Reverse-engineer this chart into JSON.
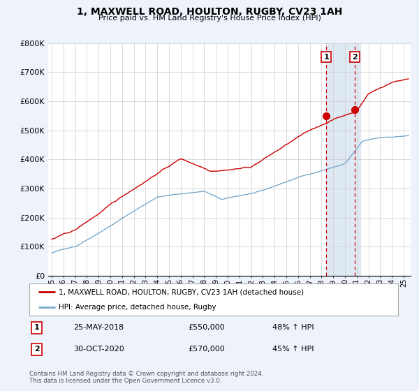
{
  "title": "1, MAXWELL ROAD, HOULTON, RUGBY, CV23 1AH",
  "subtitle": "Price paid vs. HM Land Registry's House Price Index (HPI)",
  "ylim": [
    0,
    800000
  ],
  "yticks": [
    0,
    100000,
    200000,
    300000,
    400000,
    500000,
    600000,
    700000,
    800000
  ],
  "ytick_labels": [
    "£0",
    "£100K",
    "£200K",
    "£300K",
    "£400K",
    "£500K",
    "£600K",
    "£700K",
    "£800K"
  ],
  "property_color": "#cc0000",
  "hpi_color": "#7aaacc",
  "vline_color": "#cc0000",
  "marker1_date": 2018.4,
  "marker1_price": 550000,
  "marker1_text": "25-MAY-2018",
  "marker1_pct": "48% ↑ HPI",
  "marker2_date": 2020.83,
  "marker2_price": 570000,
  "marker2_text": "30-OCT-2020",
  "marker2_pct": "45% ↑ HPI",
  "legend_property": "1, MAXWELL ROAD, HOULTON, RUGBY, CV23 1AH (detached house)",
  "legend_hpi": "HPI: Average price, detached house, Rugby",
  "footer": "Contains HM Land Registry data © Crown copyright and database right 2024.\nThis data is licensed under the Open Government Licence v3.0.",
  "bg_color": "#eef2fb",
  "plot_bg": "#ffffff",
  "grid_color": "#cccccc",
  "shaded_color": "#d8e4f0"
}
